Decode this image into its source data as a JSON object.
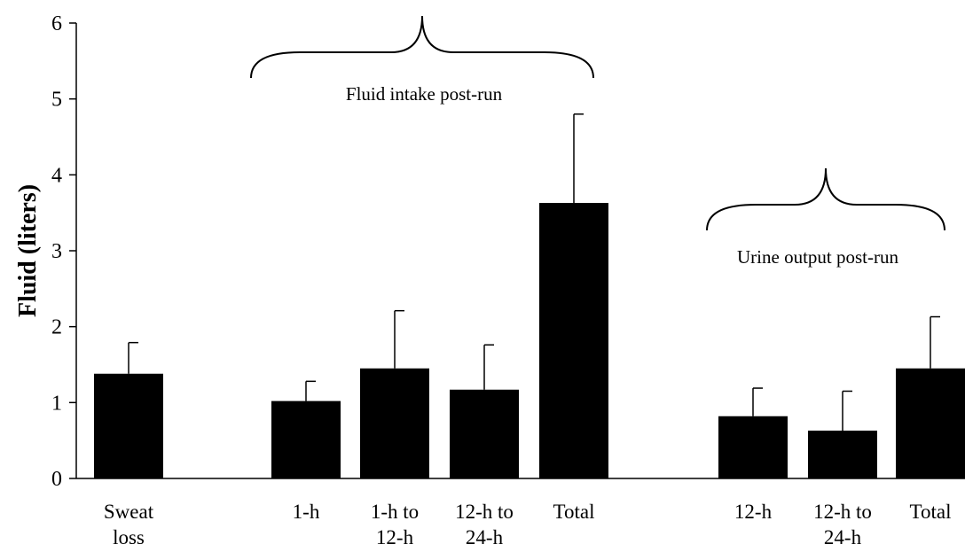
{
  "chart_data": {
    "type": "bar",
    "ylabel": "Fluid (liters)",
    "ylim": [
      0,
      6
    ],
    "yticks": [
      0,
      1,
      2,
      3,
      4,
      5,
      6
    ],
    "grid": false,
    "legend": "none",
    "bar_color": "#000000",
    "bars": [
      {
        "label": [
          "Sweat",
          "loss"
        ],
        "value": 1.38,
        "error": 0.41
      },
      {
        "label": [
          "1-h"
        ],
        "value": 1.02,
        "error": 0.26
      },
      {
        "label": [
          "1-h to",
          "12-h"
        ],
        "value": 1.45,
        "error": 0.76
      },
      {
        "label": [
          "12-h to",
          "24-h"
        ],
        "value": 1.17,
        "error": 0.59
      },
      {
        "label": [
          "Total"
        ],
        "value": 3.63,
        "error": 1.17
      },
      {
        "label": [
          "12-h"
        ],
        "value": 0.82,
        "error": 0.37
      },
      {
        "label": [
          "12-h to",
          "24-h"
        ],
        "value": 0.63,
        "error": 0.52
      },
      {
        "label": [
          "Total"
        ],
        "value": 1.45,
        "error": 0.68
      }
    ],
    "groups": [
      {
        "label": "Fluid intake post-run",
        "bars": [
          1,
          2,
          3,
          4
        ]
      },
      {
        "label": "Urine output post-run",
        "bars": [
          5,
          6,
          7
        ]
      }
    ]
  }
}
